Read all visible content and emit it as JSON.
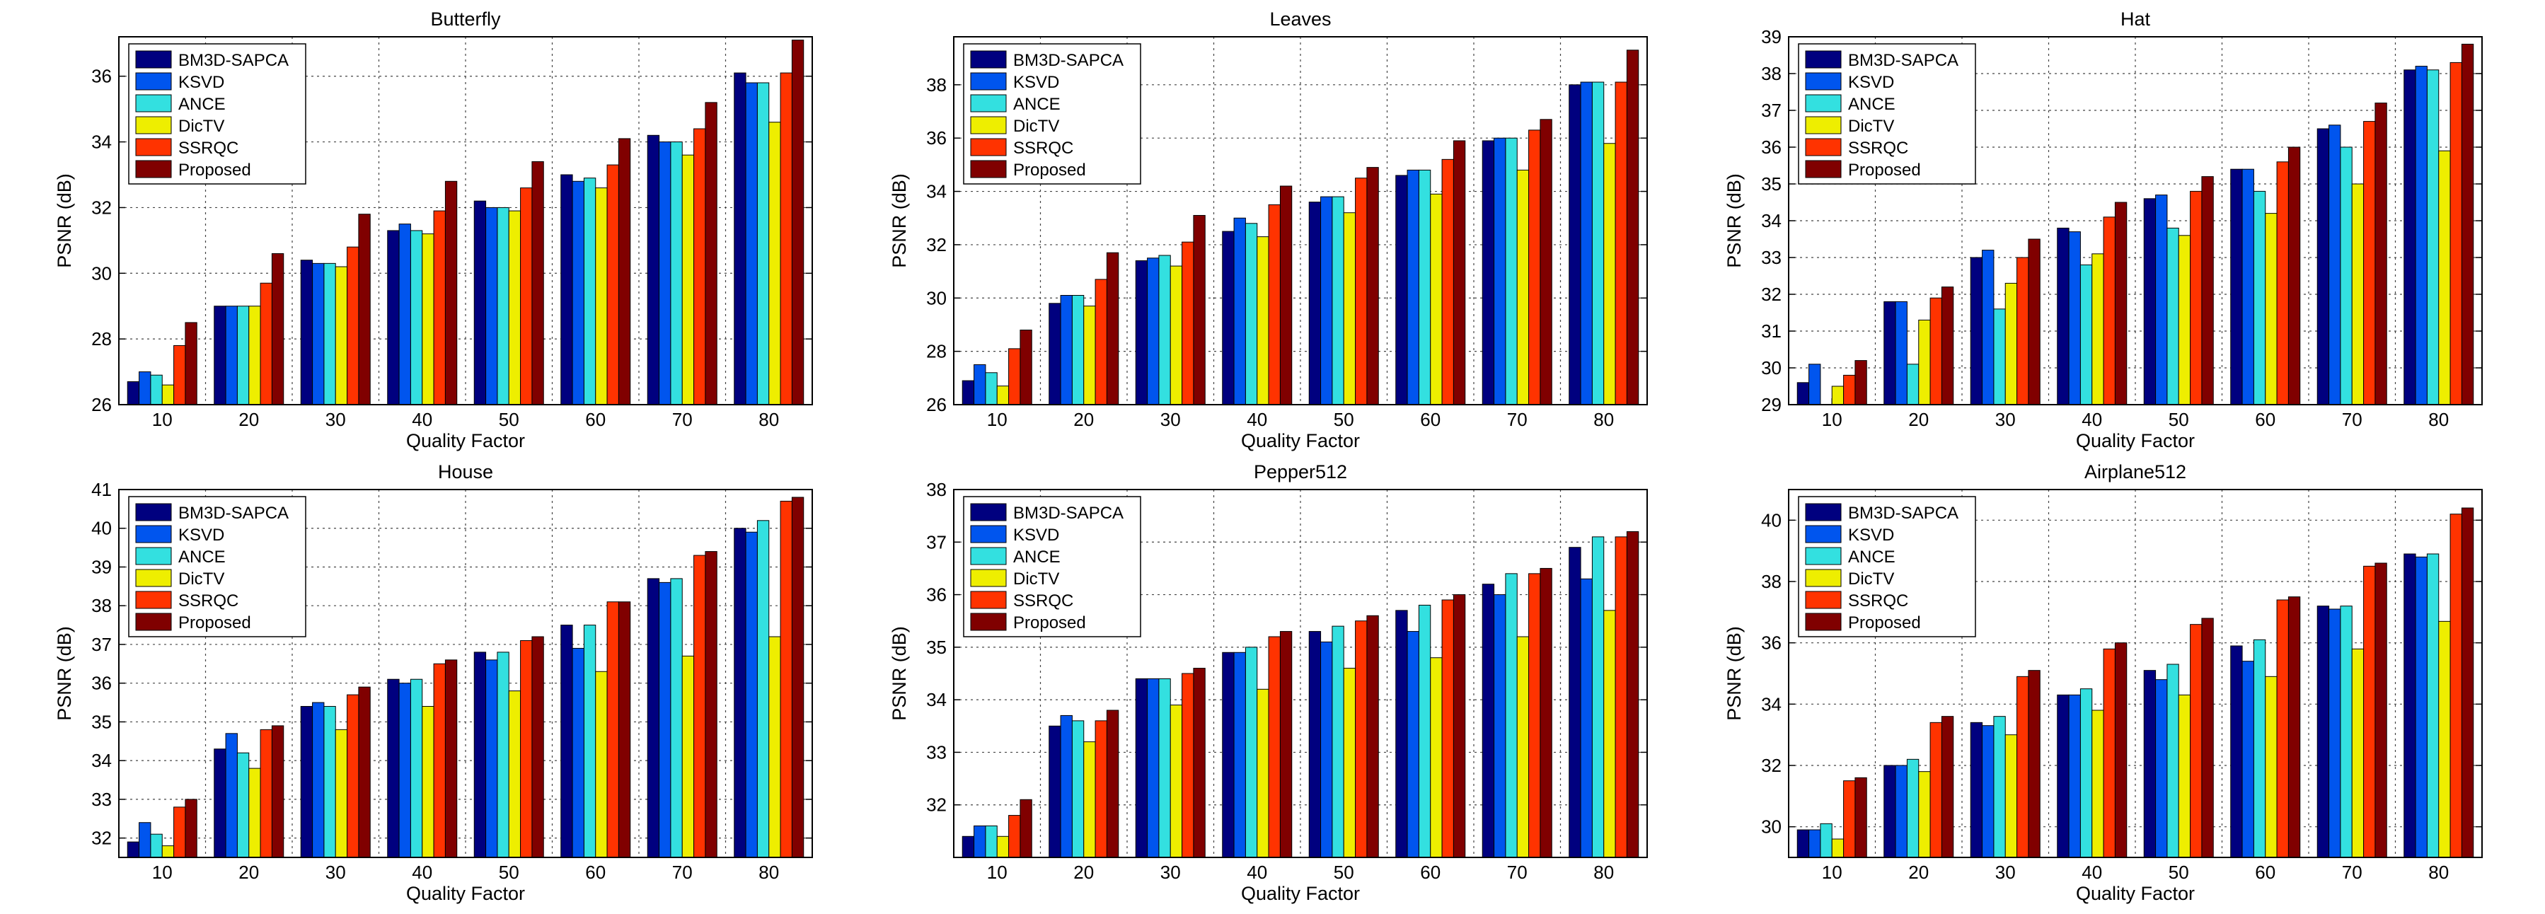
{
  "colors": {
    "BM3D-SAPCA": "#00007f",
    "KSVD": "#0055ee",
    "ANCE": "#33e0e0",
    "DicTV": "#eeee00",
    "SSRQC": "#ff3300",
    "Proposed": "#800000"
  },
  "chart_data": [
    {
      "type": "bar",
      "title": "Butterfly",
      "xlabel": "Quality Factor",
      "ylabel": "PSNR (dB)",
      "categories": [
        "10",
        "20",
        "30",
        "40",
        "50",
        "60",
        "70",
        "80"
      ],
      "ylim": [
        26,
        37.2
      ],
      "yticks": [
        26,
        28,
        30,
        32,
        34,
        36
      ],
      "grid": true,
      "legend_position": "top-left",
      "series": [
        {
          "name": "BM3D-SAPCA",
          "values": [
            26.7,
            29.0,
            30.4,
            31.3,
            32.2,
            33.0,
            34.2,
            36.1
          ]
        },
        {
          "name": "KSVD",
          "values": [
            27.0,
            29.0,
            30.3,
            31.5,
            32.0,
            32.8,
            34.0,
            35.8
          ]
        },
        {
          "name": "ANCE",
          "values": [
            26.9,
            29.0,
            30.3,
            31.3,
            32.0,
            32.9,
            34.0,
            35.8
          ]
        },
        {
          "name": "DicTV",
          "values": [
            26.6,
            29.0,
            30.2,
            31.2,
            31.9,
            32.6,
            33.6,
            34.6
          ]
        },
        {
          "name": "SSRQC",
          "values": [
            27.8,
            29.7,
            30.8,
            31.9,
            32.6,
            33.3,
            34.4,
            36.1
          ]
        },
        {
          "name": "Proposed",
          "values": [
            28.5,
            30.6,
            31.8,
            32.8,
            33.4,
            34.1,
            35.2,
            37.1
          ]
        }
      ]
    },
    {
      "type": "bar",
      "title": "Leaves",
      "xlabel": "Quality Factor",
      "ylabel": "PSNR (dB)",
      "categories": [
        "10",
        "20",
        "30",
        "40",
        "50",
        "60",
        "70",
        "80"
      ],
      "ylim": [
        26,
        39.8
      ],
      "yticks": [
        26,
        28,
        30,
        32,
        34,
        36,
        38
      ],
      "grid": true,
      "legend_position": "top-left",
      "series": [
        {
          "name": "BM3D-SAPCA",
          "values": [
            26.9,
            29.8,
            31.4,
            32.5,
            33.6,
            34.6,
            35.9,
            38.0
          ]
        },
        {
          "name": "KSVD",
          "values": [
            27.5,
            30.1,
            31.5,
            33.0,
            33.8,
            34.8,
            36.0,
            38.1
          ]
        },
        {
          "name": "ANCE",
          "values": [
            27.2,
            30.1,
            31.6,
            32.8,
            33.8,
            34.8,
            36.0,
            38.1
          ]
        },
        {
          "name": "DicTV",
          "values": [
            26.7,
            29.7,
            31.2,
            32.3,
            33.2,
            33.9,
            34.8,
            35.8
          ]
        },
        {
          "name": "SSRQC",
          "values": [
            28.1,
            30.7,
            32.1,
            33.5,
            34.5,
            35.2,
            36.3,
            38.1
          ]
        },
        {
          "name": "Proposed",
          "values": [
            28.8,
            31.7,
            33.1,
            34.2,
            34.9,
            35.9,
            36.7,
            39.3
          ]
        }
      ]
    },
    {
      "type": "bar",
      "title": "Hat",
      "xlabel": "Quality Factor",
      "ylabel": "PSNR (dB)",
      "categories": [
        "10",
        "20",
        "30",
        "40",
        "50",
        "60",
        "70",
        "80"
      ],
      "ylim": [
        29,
        39
      ],
      "yticks": [
        29,
        30,
        31,
        32,
        33,
        34,
        35,
        36,
        37,
        38,
        39
      ],
      "grid": true,
      "legend_position": "top-left",
      "series": [
        {
          "name": "BM3D-SAPCA",
          "values": [
            29.6,
            31.8,
            33.0,
            33.8,
            34.6,
            35.4,
            36.5,
            38.1
          ]
        },
        {
          "name": "KSVD",
          "values": [
            30.1,
            31.8,
            33.2,
            33.7,
            34.7,
            35.4,
            36.6,
            38.2
          ]
        },
        {
          "name": "ANCE",
          "values": [
            29.0,
            30.1,
            31.6,
            32.8,
            33.8,
            34.8,
            36.0,
            38.1
          ]
        },
        {
          "name": "DicTV",
          "values": [
            29.5,
            31.3,
            32.3,
            33.1,
            33.6,
            34.2,
            35.0,
            35.9
          ]
        },
        {
          "name": "SSRQC",
          "values": [
            29.8,
            31.9,
            33.0,
            34.1,
            34.8,
            35.6,
            36.7,
            38.3
          ]
        },
        {
          "name": "Proposed",
          "values": [
            30.2,
            32.2,
            33.5,
            34.5,
            35.2,
            36.0,
            37.2,
            38.8
          ]
        }
      ]
    },
    {
      "type": "bar",
      "title": "House",
      "xlabel": "Quality Factor",
      "ylabel": "PSNR (dB)",
      "categories": [
        "10",
        "20",
        "30",
        "40",
        "50",
        "60",
        "70",
        "80"
      ],
      "ylim": [
        31.5,
        41
      ],
      "yticks": [
        32,
        33,
        34,
        35,
        36,
        37,
        38,
        39,
        40,
        41
      ],
      "grid": true,
      "legend_position": "top-left",
      "series": [
        {
          "name": "BM3D-SAPCA",
          "values": [
            31.9,
            34.3,
            35.4,
            36.1,
            36.8,
            37.5,
            38.7,
            40.0
          ]
        },
        {
          "name": "KSVD",
          "values": [
            32.4,
            34.7,
            35.5,
            36.0,
            36.6,
            36.9,
            38.6,
            39.9
          ]
        },
        {
          "name": "ANCE",
          "values": [
            32.1,
            34.2,
            35.4,
            36.1,
            36.8,
            37.5,
            38.7,
            40.2
          ]
        },
        {
          "name": "DicTV",
          "values": [
            31.8,
            33.8,
            34.8,
            35.4,
            35.8,
            36.3,
            36.7,
            37.2
          ]
        },
        {
          "name": "SSRQC",
          "values": [
            32.8,
            34.8,
            35.7,
            36.5,
            37.1,
            38.1,
            39.3,
            40.7
          ]
        },
        {
          "name": "Proposed",
          "values": [
            33.0,
            34.9,
            35.9,
            36.6,
            37.2,
            38.1,
            39.4,
            40.8
          ]
        }
      ]
    },
    {
      "type": "bar",
      "title": "Pepper512",
      "xlabel": "Quality Factor",
      "ylabel": "PSNR (dB)",
      "categories": [
        "10",
        "20",
        "30",
        "40",
        "50",
        "60",
        "70",
        "80"
      ],
      "ylim": [
        31,
        38
      ],
      "yticks": [
        32,
        33,
        34,
        35,
        36,
        37,
        38
      ],
      "grid": true,
      "legend_position": "top-left",
      "series": [
        {
          "name": "BM3D-SAPCA",
          "values": [
            31.4,
            33.5,
            34.4,
            34.9,
            35.3,
            35.7,
            36.2,
            36.9
          ]
        },
        {
          "name": "KSVD",
          "values": [
            31.6,
            33.7,
            34.4,
            34.9,
            35.1,
            35.3,
            36.0,
            36.3
          ]
        },
        {
          "name": "ANCE",
          "values": [
            31.6,
            33.6,
            34.4,
            35.0,
            35.4,
            35.8,
            36.4,
            37.1
          ]
        },
        {
          "name": "DicTV",
          "values": [
            31.4,
            33.2,
            33.9,
            34.2,
            34.6,
            34.8,
            35.2,
            35.7
          ]
        },
        {
          "name": "SSRQC",
          "values": [
            31.8,
            33.6,
            34.5,
            35.2,
            35.5,
            35.9,
            36.4,
            37.1
          ]
        },
        {
          "name": "Proposed",
          "values": [
            32.1,
            33.8,
            34.6,
            35.3,
            35.6,
            36.0,
            36.5,
            37.2
          ]
        }
      ]
    },
    {
      "type": "bar",
      "title": "Airplane512",
      "xlabel": "Quality Factor",
      "ylabel": "PSNR (dB)",
      "categories": [
        "10",
        "20",
        "30",
        "40",
        "50",
        "60",
        "70",
        "80"
      ],
      "ylim": [
        29,
        41
      ],
      "yticks": [
        30,
        32,
        34,
        36,
        38,
        40
      ],
      "grid": true,
      "legend_position": "top-left",
      "series": [
        {
          "name": "BM3D-SAPCA",
          "values": [
            29.9,
            32.0,
            33.4,
            34.3,
            35.1,
            35.9,
            37.2,
            38.9
          ]
        },
        {
          "name": "KSVD",
          "values": [
            29.9,
            32.0,
            33.3,
            34.3,
            34.8,
            35.4,
            37.1,
            38.8
          ]
        },
        {
          "name": "ANCE",
          "values": [
            30.1,
            32.2,
            33.6,
            34.5,
            35.3,
            36.1,
            37.2,
            38.9
          ]
        },
        {
          "name": "DicTV",
          "values": [
            29.6,
            31.8,
            33.0,
            33.8,
            34.3,
            34.9,
            35.8,
            36.7
          ]
        },
        {
          "name": "SSRQC",
          "values": [
            31.5,
            33.4,
            34.9,
            35.8,
            36.6,
            37.4,
            38.5,
            40.2
          ]
        },
        {
          "name": "Proposed",
          "values": [
            31.6,
            33.6,
            35.1,
            36.0,
            36.8,
            37.5,
            38.6,
            40.4
          ]
        }
      ]
    }
  ]
}
